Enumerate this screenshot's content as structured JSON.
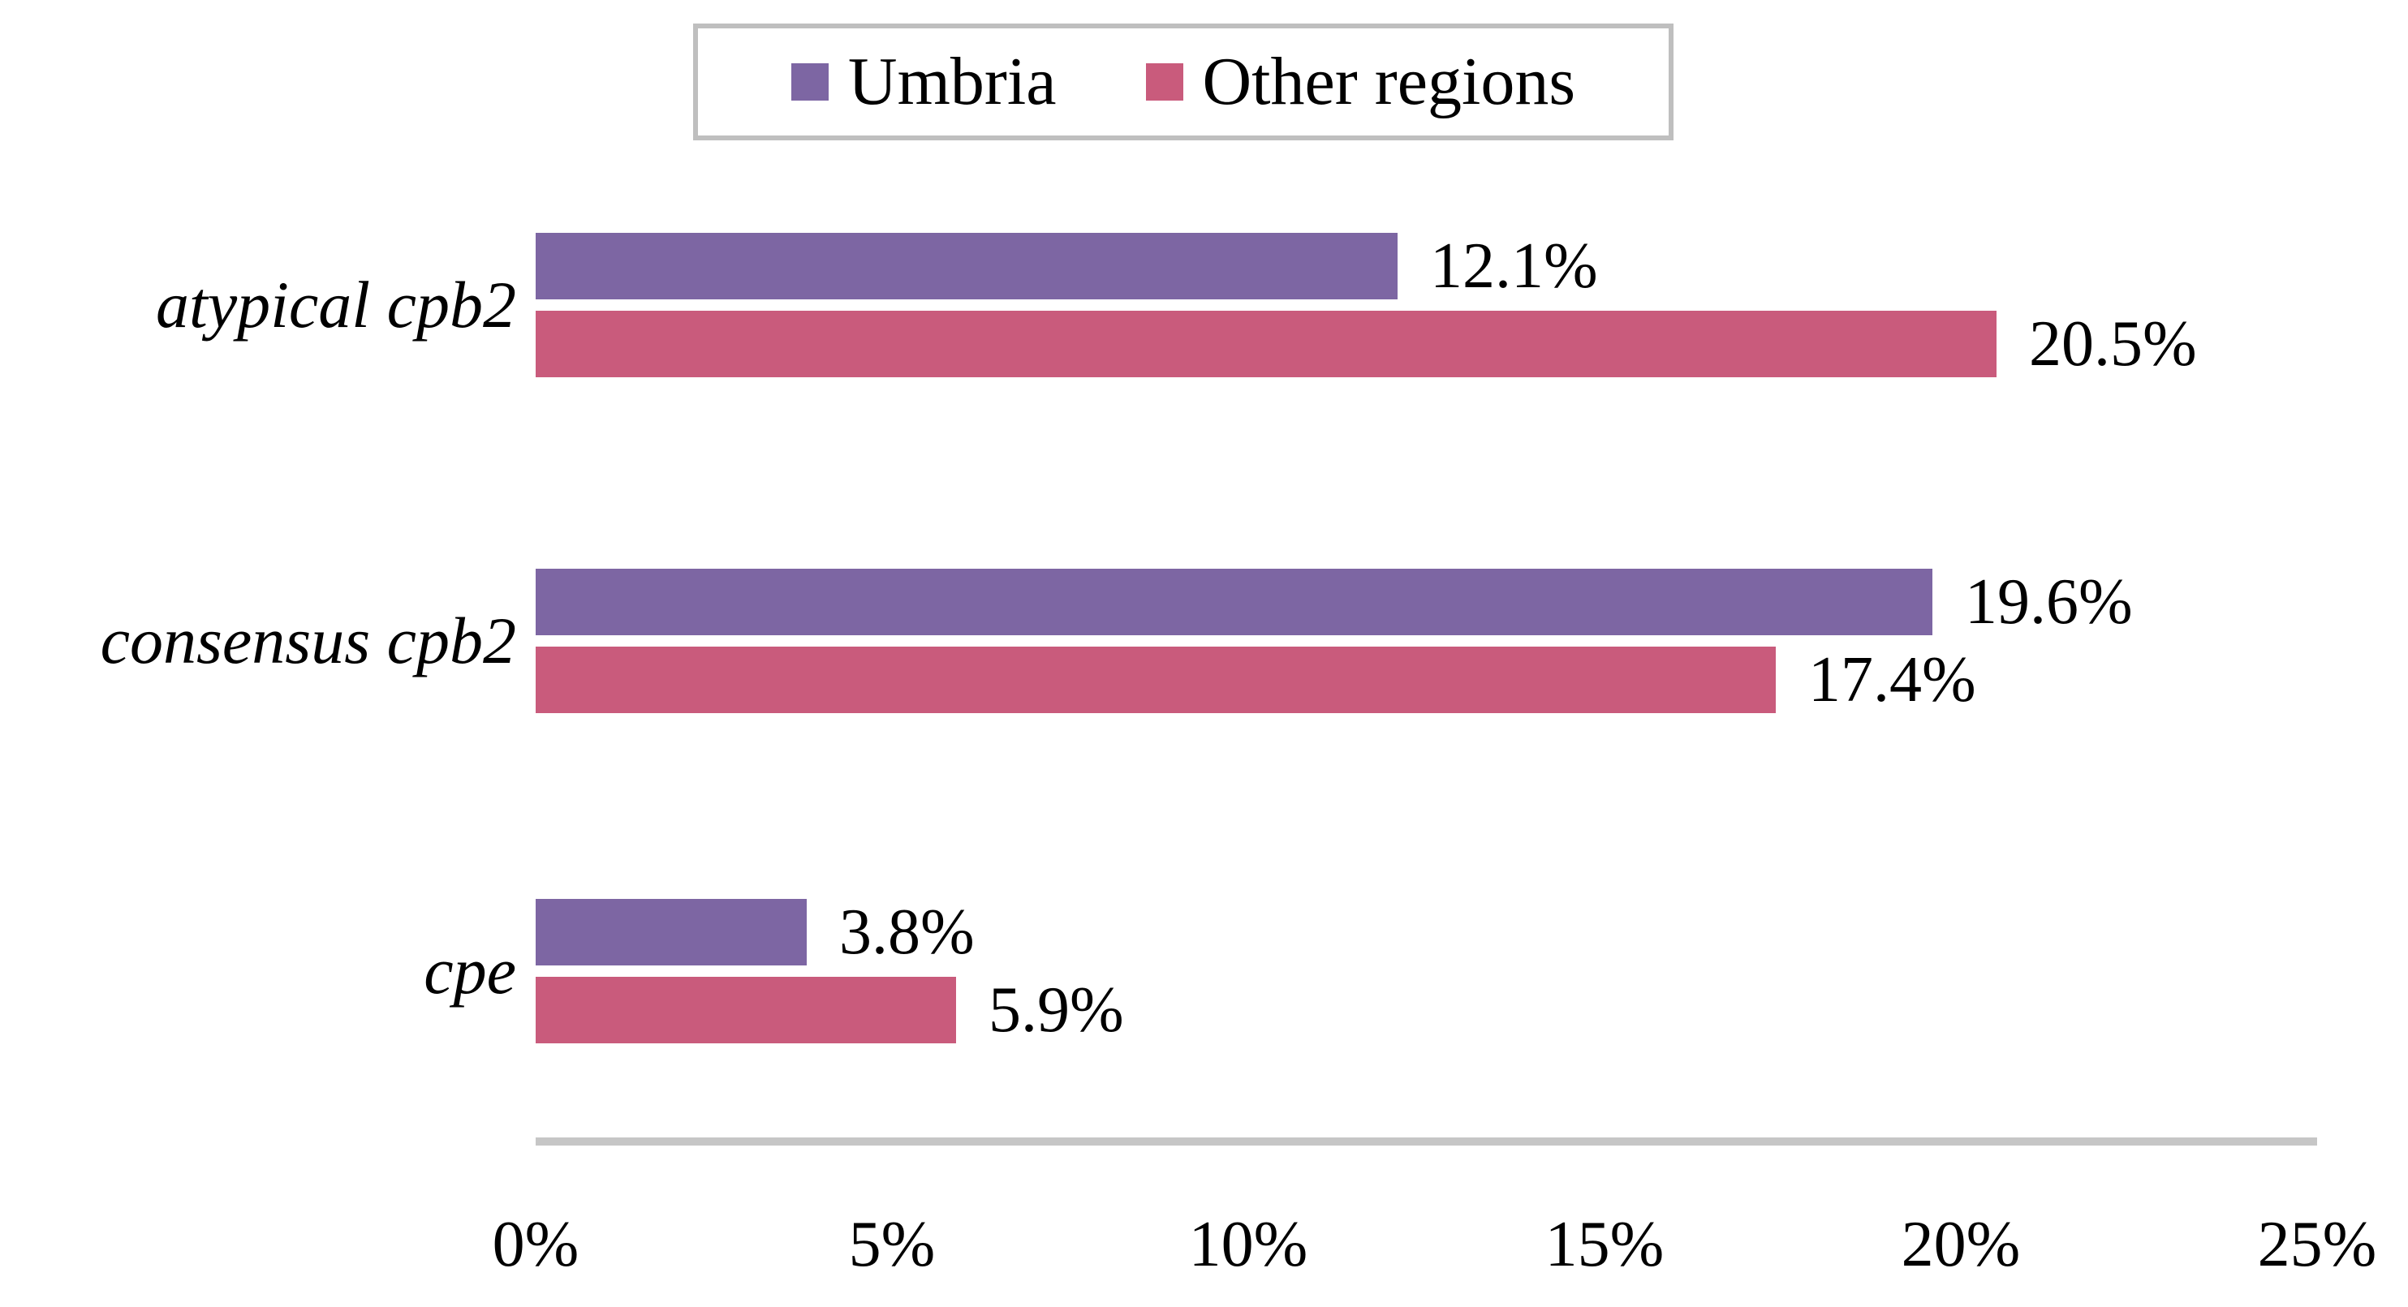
{
  "chart_data": {
    "type": "bar",
    "orientation": "horizontal",
    "title": "",
    "categories": [
      "atypical cpb2",
      "consensus cpb2",
      "cpe"
    ],
    "series": [
      {
        "name": "Umbria",
        "color": "#7d66a3",
        "values": [
          12.1,
          19.6,
          3.8
        ],
        "labels": [
          "12.1%",
          "19.6%",
          "3.8%"
        ]
      },
      {
        "name": "Other regions",
        "color": "#c95b7c",
        "values": [
          20.5,
          17.4,
          5.9
        ],
        "labels": [
          "20.5%",
          "17.4%",
          "5.9%"
        ]
      }
    ],
    "x_ticks": [
      "0%",
      "5%",
      "10%",
      "15%",
      "20%",
      "25%"
    ],
    "xlim": [
      0,
      25
    ],
    "grid": false,
    "legend_position": "top-center",
    "axis_line_color": "#c6c6c6",
    "legend_border_color": "#bfbfbf",
    "background": "#ffffff"
  }
}
